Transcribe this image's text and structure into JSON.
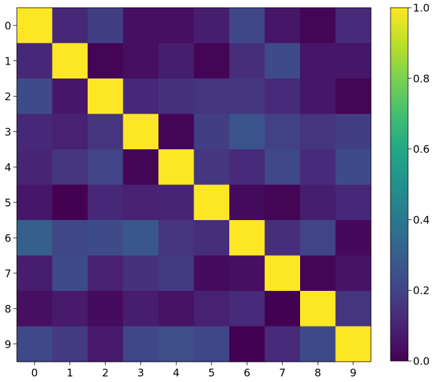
{
  "chart_data": {
    "type": "heatmap",
    "colormap": "viridis",
    "x_categories": [
      "0",
      "1",
      "2",
      "3",
      "4",
      "5",
      "6",
      "7",
      "8",
      "9"
    ],
    "y_categories": [
      "0",
      "1",
      "2",
      "3",
      "4",
      "5",
      "6",
      "7",
      "8",
      "9"
    ],
    "values": [
      [
        1.0,
        0.11,
        0.18,
        0.04,
        0.04,
        0.08,
        0.21,
        0.06,
        0.01,
        0.12
      ],
      [
        0.11,
        1.0,
        0.01,
        0.04,
        0.08,
        0.01,
        0.13,
        0.23,
        0.06,
        0.06
      ],
      [
        0.23,
        0.06,
        1.0,
        0.11,
        0.14,
        0.15,
        0.16,
        0.12,
        0.06,
        0.01
      ],
      [
        0.11,
        0.09,
        0.15,
        1.0,
        0.01,
        0.18,
        0.26,
        0.19,
        0.15,
        0.18
      ],
      [
        0.1,
        0.15,
        0.2,
        0.01,
        1.0,
        0.16,
        0.12,
        0.22,
        0.12,
        0.23
      ],
      [
        0.06,
        0.0,
        0.11,
        0.09,
        0.1,
        1.0,
        0.03,
        0.01,
        0.08,
        0.11
      ],
      [
        0.3,
        0.21,
        0.23,
        0.27,
        0.15,
        0.13,
        1.0,
        0.13,
        0.2,
        0.02
      ],
      [
        0.08,
        0.23,
        0.09,
        0.14,
        0.17,
        0.03,
        0.04,
        1.0,
        0.01,
        0.05
      ],
      [
        0.04,
        0.07,
        0.03,
        0.08,
        0.05,
        0.09,
        0.12,
        0.0,
        1.0,
        0.15
      ],
      [
        0.22,
        0.17,
        0.07,
        0.21,
        0.24,
        0.21,
        0.0,
        0.12,
        0.23,
        1.0
      ]
    ],
    "colorbar": {
      "min": 0.0,
      "max": 1.0,
      "ticks": [
        "0.0",
        "0.2",
        "0.4",
        "0.6",
        "0.8",
        "1.0"
      ]
    },
    "title": "",
    "xlabel": "",
    "ylabel": "",
    "grid": false
  }
}
